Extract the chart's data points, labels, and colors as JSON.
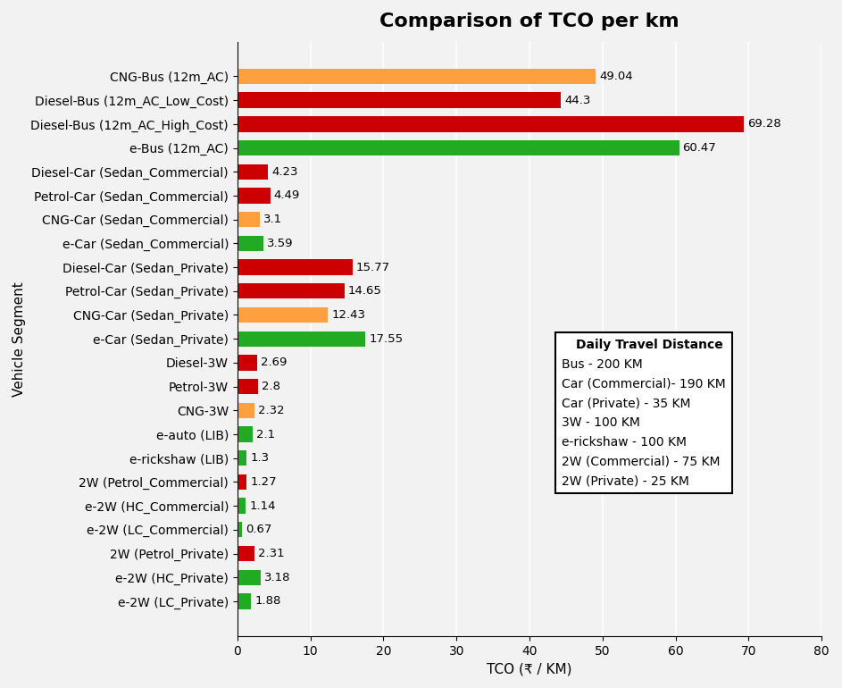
{
  "title": "Comparison of TCO per km",
  "xlabel": "TCO (₹ / KM)",
  "ylabel": "Vehicle Segment",
  "categories": [
    "CNG-Bus (12m_AC)",
    "Diesel-Bus (12m_AC_Low_Cost)",
    "Diesel-Bus (12m_AC_High_Cost)",
    "e-Bus (12m_AC)",
    "Diesel-Car (Sedan_Commercial)",
    "Petrol-Car (Sedan_Commercial)",
    "CNG-Car (Sedan_Commercial)",
    "e-Car (Sedan_Commercial)",
    "Diesel-Car (Sedan_Private)",
    "Petrol-Car (Sedan_Private)",
    "CNG-Car (Sedan_Private)",
    "e-Car (Sedan_Private)",
    "Diesel-3W",
    "Petrol-3W",
    "CNG-3W",
    "e-auto (LIB)",
    "e-rickshaw (LIB)",
    "2W (Petrol_Commercial)",
    "e-2W (HC_Commercial)",
    "e-2W (LC_Commercial)",
    "2W (Petrol_Private)",
    "e-2W (HC_Private)",
    "e-2W (LC_Private)"
  ],
  "values": [
    49.04,
    44.3,
    69.28,
    60.47,
    4.23,
    4.49,
    3.1,
    3.59,
    15.77,
    14.65,
    12.43,
    17.55,
    2.69,
    2.8,
    2.32,
    2.1,
    1.3,
    1.27,
    1.14,
    0.67,
    2.31,
    3.18,
    1.88
  ],
  "colors": [
    "#FFA040",
    "#CC0000",
    "#CC0000",
    "#22AA22",
    "#CC0000",
    "#CC0000",
    "#FFA040",
    "#22AA22",
    "#CC0000",
    "#CC0000",
    "#FFA040",
    "#22AA22",
    "#CC0000",
    "#CC0000",
    "#FFA040",
    "#22AA22",
    "#22AA22",
    "#CC0000",
    "#22AA22",
    "#22AA22",
    "#CC0000",
    "#22AA22",
    "#22AA22"
  ],
  "xlim": [
    0,
    80
  ],
  "xticks": [
    0,
    10,
    20,
    30,
    40,
    50,
    60,
    70,
    80
  ],
  "legend_title": "Daily Travel Distance",
  "legend_lines": [
    "Bus - 200 KM",
    "Car (Commercial)- 190 KM",
    "Car (Private) - 35 KM",
    "3W - 100 KM",
    "e-rickshaw - 100 KM",
    "2W (Commercial) - 75 KM",
    "2W (Private) - 25 KM"
  ],
  "background_color": "#f2f2f2",
  "title_fontsize": 16,
  "label_fontsize": 11,
  "tick_fontsize": 10,
  "bar_height": 0.65
}
